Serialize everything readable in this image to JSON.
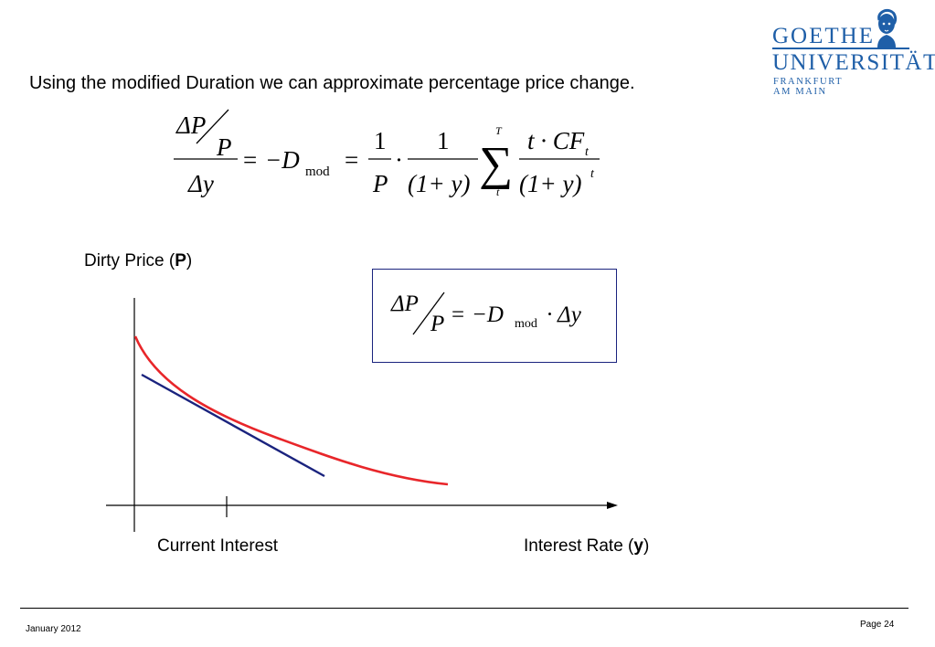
{
  "logo": {
    "line1": "GOETHE",
    "line2": "UNIVERSITÄT",
    "line3": "FRANKFURT AM MAIN"
  },
  "intro_text": "Using the modified Duration we can approximate percentage price change.",
  "formula_main": {
    "delta_p": "ΔP",
    "p": "P",
    "delta_y": "Δy",
    "eq1": "=",
    "minus_d": "−D",
    "mod": "mod",
    "eq2": "=",
    "one_a": "1",
    "p_den": "P",
    "dot": "·",
    "one_b": "1",
    "paren_den": "(1+ y)",
    "sum": "∑",
    "sum_top": "T",
    "sum_bottom": "t",
    "numerator": "t · CF",
    "numerator_sub": "t",
    "denominator": "(1+ y)",
    "denominator_sup": "t"
  },
  "formula_box": {
    "delta_p": "ΔP",
    "p": "P",
    "eq": "=",
    "minus_d": "−D",
    "mod": "mod",
    "times_dy": "· Δy"
  },
  "chart": {
    "y_label_prefix": "Dirty Price  (",
    "y_label_bold": "P",
    "y_label_suffix": ")",
    "tick_label": "Current Interest",
    "x_label_prefix": "Interest Rate (",
    "x_label_bold": "y",
    "x_label_suffix": ")",
    "curve_color": "#e8262a",
    "tangent_color": "#1a237e"
  },
  "footer": {
    "date": "January 2012",
    "page": "Page 24"
  }
}
